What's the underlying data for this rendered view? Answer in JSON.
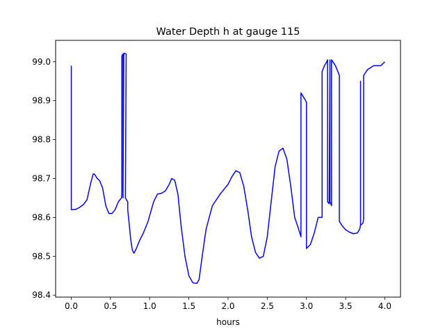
{
  "chart_data": {
    "type": "line",
    "title": "Water Depth h at gauge 115",
    "xlabel": "hours",
    "ylabel": "",
    "xlim": [
      -0.2,
      4.2
    ],
    "ylim": [
      98.395,
      99.055
    ],
    "xticks": [
      0.0,
      0.5,
      1.0,
      1.5,
      2.0,
      2.5,
      3.0,
      3.5,
      4.0
    ],
    "xtick_labels": [
      "0.0",
      "0.5",
      "1.0",
      "1.5",
      "2.0",
      "2.5",
      "3.0",
      "3.5",
      "4.0"
    ],
    "yticks": [
      98.4,
      98.5,
      98.6,
      98.7,
      98.8,
      98.9,
      99.0
    ],
    "ytick_labels": [
      "98.4",
      "98.5",
      "98.6",
      "98.7",
      "98.8",
      "98.9",
      "99.0"
    ],
    "grid": false,
    "series": [
      {
        "color": "#0000ff",
        "x": [
          0.0,
          0.0,
          0.05,
          0.1,
          0.15,
          0.2,
          0.25,
          0.28,
          0.3,
          0.33,
          0.36,
          0.4,
          0.44,
          0.48,
          0.52,
          0.56,
          0.6,
          0.64,
          0.645,
          0.645,
          0.66,
          0.66,
          0.67,
          0.7,
          0.7,
          0.69,
          0.72,
          0.72,
          0.74,
          0.76,
          0.78,
          0.8,
          0.83,
          0.87,
          0.92,
          0.98,
          1.05,
          1.1,
          1.15,
          1.2,
          1.25,
          1.28,
          1.32,
          1.36,
          1.4,
          1.45,
          1.5,
          1.55,
          1.6,
          1.63,
          1.67,
          1.72,
          1.8,
          1.9,
          2.0,
          2.05,
          2.1,
          2.15,
          2.2,
          2.25,
          2.3,
          2.35,
          2.4,
          2.45,
          2.5,
          2.55,
          2.6,
          2.65,
          2.7,
          2.75,
          2.8,
          2.85,
          2.9,
          2.93,
          2.93,
          2.96,
          2.99,
          3.0,
          3.0,
          3.05,
          3.1,
          3.15,
          3.2,
          3.2,
          3.23,
          3.26,
          3.27,
          3.27,
          3.29,
          3.3,
          3.3,
          3.32,
          3.32,
          3.37,
          3.42,
          3.42,
          3.45,
          3.5,
          3.55,
          3.6,
          3.65,
          3.68,
          3.69,
          3.69,
          3.69,
          3.72,
          3.73,
          3.73,
          3.78,
          3.82,
          3.86,
          3.9,
          3.95,
          4.0
        ],
        "y": [
          98.99,
          98.62,
          98.62,
          98.625,
          98.632,
          98.645,
          98.69,
          98.712,
          98.71,
          98.7,
          98.695,
          98.675,
          98.63,
          98.61,
          98.61,
          98.62,
          98.64,
          98.65,
          98.66,
          99.015,
          99.02,
          98.65,
          99.022,
          99.02,
          99.01,
          98.65,
          98.64,
          98.62,
          98.58,
          98.54,
          98.515,
          98.508,
          98.52,
          98.54,
          98.56,
          98.59,
          98.64,
          98.66,
          98.662,
          98.668,
          98.685,
          98.7,
          98.695,
          98.66,
          98.58,
          98.5,
          98.45,
          98.432,
          98.43,
          98.44,
          98.5,
          98.57,
          98.63,
          98.66,
          98.685,
          98.705,
          98.72,
          98.715,
          98.68,
          98.62,
          98.55,
          98.51,
          98.495,
          98.5,
          98.55,
          98.64,
          98.73,
          98.77,
          98.778,
          98.75,
          98.68,
          98.6,
          98.57,
          98.55,
          98.92,
          98.91,
          98.9,
          98.895,
          98.52,
          98.53,
          98.56,
          98.6,
          98.6,
          98.975,
          98.99,
          99.0,
          99.005,
          98.64,
          98.635,
          99.005,
          98.64,
          98.63,
          99.005,
          98.99,
          98.965,
          98.59,
          98.58,
          98.568,
          98.562,
          98.558,
          98.56,
          98.57,
          98.58,
          98.95,
          98.58,
          98.585,
          98.595,
          98.965,
          98.98,
          98.985,
          98.99,
          98.99,
          98.99,
          99.0
        ]
      }
    ]
  }
}
